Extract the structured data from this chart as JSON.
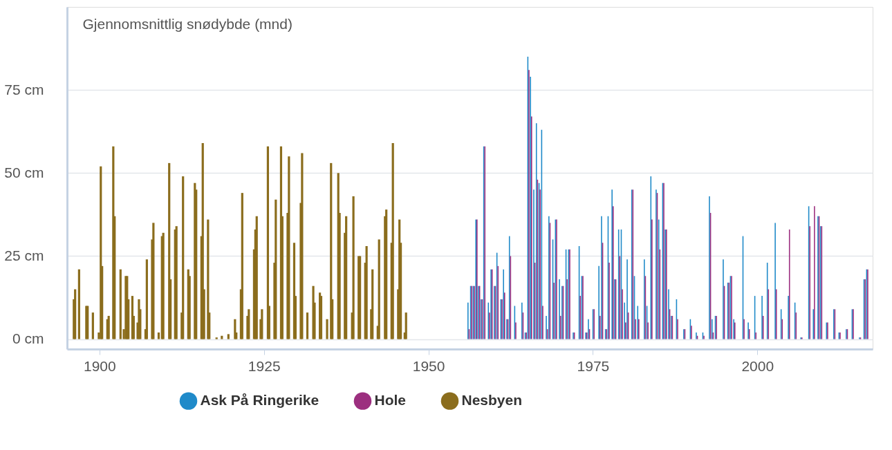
{
  "chart_data": {
    "type": "bar",
    "ylabel": "Gjennomsnittlig snødybde (mnd)",
    "xlim": [
      1895.6,
      2017
    ],
    "xticks": [
      1900,
      1925,
      1950,
      1975,
      2000
    ],
    "ylim": [
      -3,
      100
    ],
    "yticks": [
      {
        "value": 0,
        "label": "0 cm"
      },
      {
        "value": 25,
        "label": "25 cm"
      },
      {
        "value": 50,
        "label": "50 cm"
      },
      {
        "value": 75,
        "label": "75 cm"
      }
    ],
    "grid": "y",
    "legend": "bottom",
    "series": [
      {
        "name": "Ask På Ringerike",
        "color": "#1f8ac9",
        "x": [
          1956.1,
          1956.5,
          1956.9,
          1957.3,
          1957.7,
          1958.1,
          1958.5,
          1959.2,
          1959.6,
          1960.1,
          1960.5,
          1961.1,
          1961.5,
          1962.0,
          1962.4,
          1963.2,
          1964.3,
          1964.8,
          1965.2,
          1965.6,
          1966.1,
          1966.5,
          1966.9,
          1967.3,
          1968.0,
          1968.4,
          1969.0,
          1969.4,
          1970.0,
          1970.4,
          1971.0,
          1971.4,
          1972.1,
          1973.0,
          1973.4,
          1974.0,
          1974.4,
          1975.1,
          1976.0,
          1976.4,
          1977.0,
          1977.4,
          1978.0,
          1978.4,
          1979.0,
          1979.4,
          1979.9,
          1980.3,
          1981.0,
          1981.4,
          1981.9,
          1982.9,
          1983.3,
          1983.9,
          1984.7,
          1985.1,
          1985.7,
          1986.1,
          1986.6,
          1987.0,
          1987.8,
          1988.9,
          1989.9,
          1990.8,
          1991.8,
          1992.8,
          1993.2,
          1993.7,
          1994.9,
          1995.6,
          1996.0,
          1996.5,
          1997.9,
          1998.7,
          1999.7,
          2000.8,
          2001.6,
          2002.8,
          2003.7,
          2004.8,
          2005.8,
          2006.7,
          2007.9,
          2008.6,
          2009.3,
          2009.7,
          2010.6,
          2011.7,
          2012.5,
          2013.6,
          2014.5,
          2015.6,
          2016.3,
          2016.7
        ],
        "values": [
          11,
          16,
          16,
          36,
          16,
          12,
          58,
          11,
          21,
          16,
          26,
          12,
          21,
          6,
          31,
          10,
          11,
          2,
          85,
          79,
          45,
          65,
          47,
          63,
          7,
          37,
          30,
          36,
          18,
          16,
          27,
          27,
          2,
          28,
          19,
          2,
          6,
          9,
          22,
          37,
          3,
          37,
          45,
          18,
          33,
          33,
          11,
          24,
          45,
          19,
          10,
          24,
          10,
          49,
          45,
          36,
          47,
          33,
          15,
          7,
          12,
          3,
          6,
          2,
          2,
          43,
          6,
          7,
          24,
          17,
          19,
          6,
          31,
          5,
          13,
          13,
          23,
          35,
          9,
          13,
          11,
          0.5,
          40,
          9,
          37,
          34,
          5,
          9,
          2,
          3,
          9,
          0.5,
          18,
          21
        ]
      },
      {
        "name": "Hole",
        "color": "#9c2f7f",
        "x": [
          1956.1,
          1956.5,
          1956.9,
          1957.3,
          1957.7,
          1958.1,
          1958.5,
          1959.2,
          1959.6,
          1960.1,
          1960.5,
          1961.1,
          1961.5,
          1962.0,
          1962.4,
          1963.2,
          1964.3,
          1964.8,
          1965.2,
          1965.6,
          1966.1,
          1966.5,
          1966.9,
          1967.3,
          1968.0,
          1968.4,
          1969.0,
          1969.4,
          1970.0,
          1970.4,
          1971.0,
          1971.4,
          1972.1,
          1973.0,
          1973.4,
          1974.0,
          1974.4,
          1975.1,
          1976.0,
          1976.4,
          1977.0,
          1977.4,
          1978.0,
          1978.4,
          1979.0,
          1979.4,
          1979.9,
          1980.3,
          1981.0,
          1981.4,
          1981.9,
          1982.9,
          1983.3,
          1983.9,
          1984.7,
          1985.1,
          1985.7,
          1986.1,
          1986.6,
          1987.0,
          1987.8,
          1988.9,
          1989.9,
          1990.8,
          1991.8,
          1992.8,
          1993.2,
          1993.7,
          1994.9,
          1995.6,
          1996.0,
          1996.5,
          1997.9,
          1998.7,
          1999.7,
          2000.8,
          2001.6,
          2002.8,
          2003.7,
          2004.8,
          2005.8,
          2006.7,
          2007.9,
          2008.6,
          2009.3,
          2009.7,
          2010.6,
          2011.7,
          2012.5,
          2013.6,
          2014.5,
          2015.6,
          2016.3,
          2016.7
        ],
        "values": [
          3,
          16,
          16,
          36,
          16,
          12,
          58,
          8,
          21,
          16,
          22,
          12,
          14,
          6,
          25,
          5,
          8,
          2,
          81,
          67,
          23,
          48,
          45,
          10,
          3,
          35,
          17,
          36,
          7,
          16,
          18,
          27,
          2,
          13,
          19,
          2,
          3,
          9,
          7,
          29,
          3,
          23,
          40,
          18,
          25,
          15,
          5,
          8,
          45,
          6,
          6,
          19,
          5,
          36,
          44,
          27,
          47,
          33,
          9,
          7,
          6,
          3,
          4,
          1,
          1,
          38,
          2,
          7,
          16,
          17,
          19,
          5,
          6,
          3,
          2,
          7,
          15,
          15,
          6,
          33,
          8,
          0.5,
          34,
          40,
          37,
          34,
          5,
          9,
          2,
          3,
          9,
          0.5,
          18,
          21
        ]
      },
      {
        "name": "Nesbyen",
        "color": "#8b6d1d",
        "x": [
          1896.1,
          1896.3,
          1896.9,
          1898.0,
          1898.2,
          1899.0,
          1899.9,
          1900.2,
          1900.4,
          1901.2,
          1901.4,
          1902.1,
          1902.3,
          1903.2,
          1903.7,
          1904.0,
          1904.2,
          1904.4,
          1905.0,
          1905.2,
          1905.8,
          1906.0,
          1906.2,
          1907.0,
          1907.2,
          1908.0,
          1908.2,
          1909.0,
          1909.5,
          1909.7,
          1910.6,
          1910.8,
          1911.5,
          1911.7,
          1912.5,
          1912.7,
          1913.5,
          1913.7,
          1914.5,
          1914.7,
          1915.5,
          1915.7,
          1915.9,
          1916.5,
          1916.7,
          1917.8,
          1918.6,
          1919.6,
          1920.6,
          1920.8,
          1921.5,
          1921.7,
          1922.5,
          1922.7,
          1923.5,
          1923.7,
          1923.9,
          1924.5,
          1924.7,
          1925.6,
          1925.8,
          1926.6,
          1926.8,
          1927.6,
          1927.8,
          1928.6,
          1928.8,
          1929.6,
          1929.8,
          1930.6,
          1930.8,
          1931.6,
          1932.5,
          1932.7,
          1933.5,
          1933.7,
          1934.6,
          1935.2,
          1935.4,
          1936.3,
          1936.5,
          1937.3,
          1937.5,
          1938.4,
          1938.6,
          1939.4,
          1939.6,
          1940.4,
          1940.6,
          1941.3,
          1941.5,
          1942.3,
          1942.5,
          1943.4,
          1943.6,
          1944.4,
          1944.6,
          1945.4,
          1945.6,
          1945.8,
          1946.4,
          1946.6
        ],
        "values": [
          12,
          15,
          21,
          10,
          10,
          8,
          2,
          52,
          22,
          6,
          7,
          58,
          37,
          21,
          3,
          19,
          19,
          12,
          13,
          7,
          5,
          12,
          9,
          3,
          24,
          30,
          35,
          2,
          31,
          32,
          53,
          18,
          33,
          34,
          8,
          49,
          21,
          19,
          47,
          45,
          31,
          59,
          15,
          36,
          8,
          0.5,
          1,
          1.5,
          6,
          2,
          15,
          44,
          7,
          9,
          27,
          33,
          37,
          6,
          9,
          58,
          10,
          23,
          42,
          58,
          37,
          38,
          55,
          29,
          13,
          41,
          56,
          8,
          16,
          11,
          14,
          13,
          6,
          53,
          12,
          50,
          38,
          32,
          37,
          8,
          43,
          25,
          25,
          23,
          28,
          9,
          21,
          4,
          30,
          37,
          39,
          29,
          59,
          15,
          36,
          29,
          2,
          8
        ]
      }
    ]
  }
}
